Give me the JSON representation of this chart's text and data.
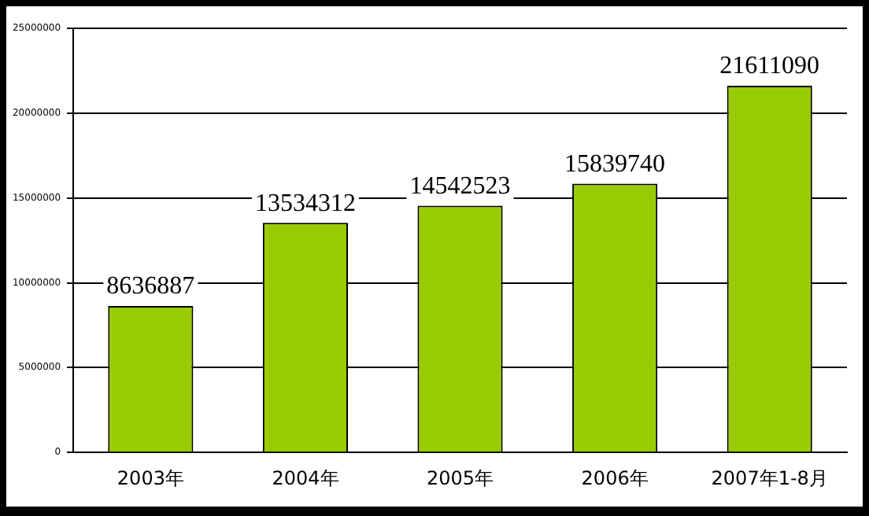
{
  "chart_data": {
    "type": "bar",
    "categories": [
      "2003年",
      "2004年",
      "2005年",
      "2006年",
      "2007年1-8月"
    ],
    "values": [
      8636887,
      13534312,
      14542523,
      15839740,
      21611090
    ],
    "color": "#99cc00",
    "ylim": [
      0,
      25000000
    ],
    "yticks": [
      0,
      5000000,
      10000000,
      15000000,
      20000000,
      25000000
    ],
    "grid": "y",
    "data_labels": true
  }
}
